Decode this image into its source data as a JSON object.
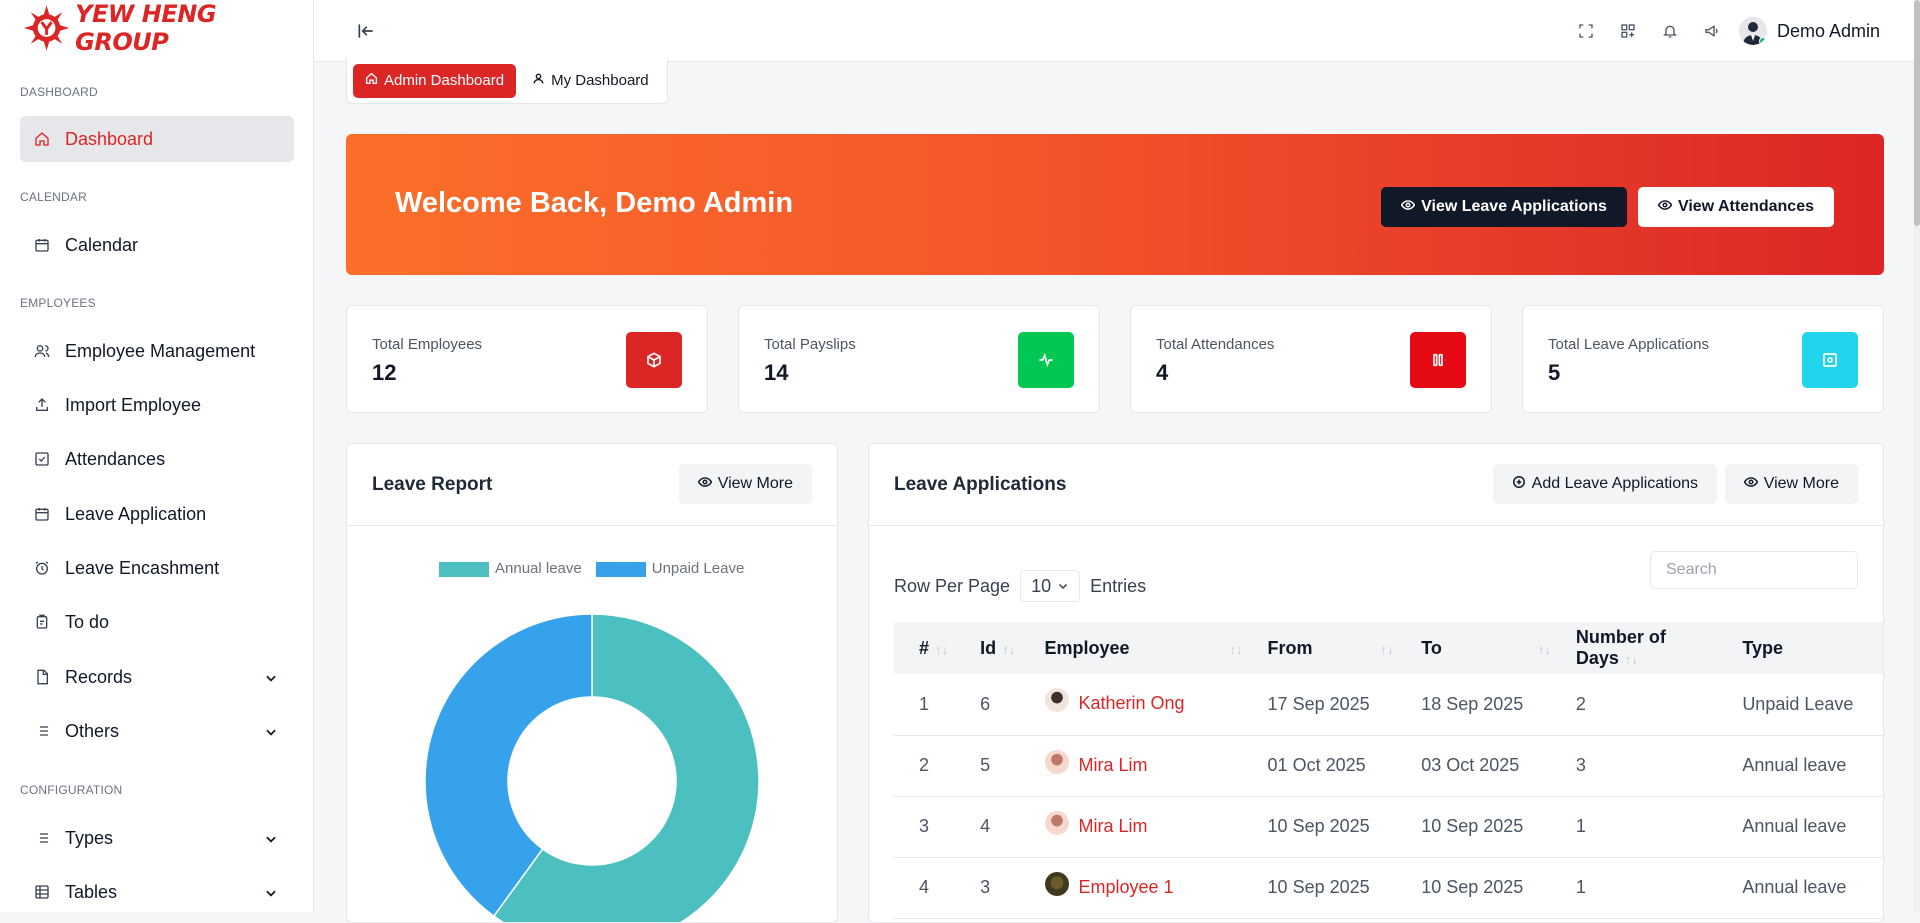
{
  "app": {
    "brand": "YEW HENG GROUP",
    "user_name": "Demo Admin"
  },
  "sidebar": {
    "sections": [
      {
        "label": "DASHBOARD"
      },
      {
        "label": "CALENDAR"
      },
      {
        "label": "EMPLOYEES"
      },
      {
        "label": "CONFIGURATION"
      }
    ],
    "items": [
      {
        "label": "Dashboard",
        "icon": "home-icon",
        "active": true
      },
      {
        "label": "Calendar",
        "icon": "calendar-icon"
      },
      {
        "label": "Employee Management",
        "icon": "users-icon"
      },
      {
        "label": "Import Employee",
        "icon": "upload-icon"
      },
      {
        "label": "Attendances",
        "icon": "check-square-icon"
      },
      {
        "label": "Leave Application",
        "icon": "calendar-icon"
      },
      {
        "label": "Leave Encashment",
        "icon": "alarm-clock-icon"
      },
      {
        "label": "To do",
        "icon": "clipboard-icon"
      },
      {
        "label": "Records",
        "icon": "file-icon",
        "expandable": true
      },
      {
        "label": "Others",
        "icon": "list-icon",
        "expandable": true
      },
      {
        "label": "Types",
        "icon": "list-icon",
        "expandable": true
      },
      {
        "label": "Tables",
        "icon": "table-icon",
        "expandable": true
      }
    ]
  },
  "tabs": [
    {
      "label": "Admin Dashboard",
      "icon": "home-icon",
      "active": true
    },
    {
      "label": "My Dashboard",
      "icon": "user-icon"
    }
  ],
  "banner": {
    "title": "Welcome Back, Demo Admin",
    "buttons": [
      {
        "label": "View Leave Applications",
        "icon": "eye-icon"
      },
      {
        "label": "View Attendances",
        "icon": "eye-icon"
      }
    ]
  },
  "stats": [
    {
      "label": "Total Employees",
      "value": "12",
      "color": "#dc2626",
      "icon": "cube-icon"
    },
    {
      "label": "Total Payslips",
      "value": "14",
      "color": "#00c853",
      "icon": "pulse-icon"
    },
    {
      "label": "Total Attendances",
      "value": "4",
      "color": "#e50914",
      "icon": "pause-icon"
    },
    {
      "label": "Total Leave Applications",
      "value": "5",
      "color": "#22d3ee",
      "icon": "square-target-icon"
    }
  ],
  "leave_report": {
    "title": "Leave Report",
    "view_more": "View More",
    "chart_data": {
      "type": "pie",
      "labels": [
        "Annual leave",
        "Unpaid Leave"
      ],
      "values": [
        3,
        2
      ],
      "colors": [
        "#4cc0c0",
        "#36a2eb"
      ],
      "donut": true,
      "legend": "top"
    }
  },
  "leave_apps": {
    "title": "Leave Applications",
    "add_label": "Add Leave Applications",
    "view_more": "View More",
    "rows_per_page_label": "Row Per Page",
    "rows_per_page_value": "10",
    "entries_label": "Entries",
    "search_placeholder": "Search",
    "columns": [
      "#",
      "Id",
      "Employee",
      "From",
      "To",
      "Number of Days",
      "Type"
    ],
    "rows": [
      {
        "n": "1",
        "id": "6",
        "employee": "Katherin Ong",
        "from": "17 Sep 2025",
        "to": "18 Sep 2025",
        "days": "2",
        "type": "Unpaid Leave"
      },
      {
        "n": "2",
        "id": "5",
        "employee": "Mira Lim",
        "from": "01 Oct 2025",
        "to": "03 Oct 2025",
        "days": "3",
        "type": "Annual leave"
      },
      {
        "n": "3",
        "id": "4",
        "employee": "Mira Lim",
        "from": "10 Sep 2025",
        "to": "10 Sep 2025",
        "days": "1",
        "type": "Annual leave"
      },
      {
        "n": "4",
        "id": "3",
        "employee": "Employee 1",
        "from": "10 Sep 2025",
        "to": "10 Sep 2025",
        "days": "1",
        "type": "Annual leave"
      }
    ]
  }
}
